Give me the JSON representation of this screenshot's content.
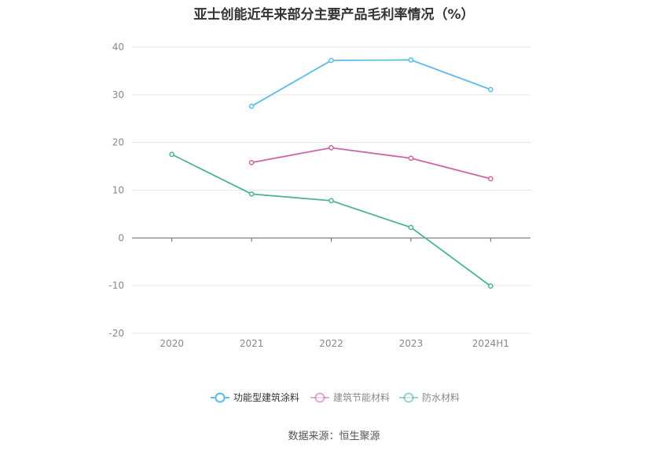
{
  "title": "亚士创能近年来部分主要产品毛利率情况（%）",
  "source": "数据来源：恒生聚源",
  "chart_data": {
    "type": "line",
    "categories": [
      "2020",
      "2021",
      "2022",
      "2023",
      "2024H1"
    ],
    "ylim": [
      -20,
      40
    ],
    "yticks": [
      40,
      30,
      20,
      10,
      0,
      -10,
      -20
    ],
    "grid": true,
    "legend_position": "bottom",
    "series": [
      {
        "name": "功能型建筑涂料",
        "color": "#5bbcea",
        "values": [
          null,
          27.6,
          37.2,
          37.3,
          31.1
        ]
      },
      {
        "name": "建筑节能材料",
        "color": "#d062a8",
        "values": [
          null,
          15.8,
          18.9,
          16.7,
          12.4
        ]
      },
      {
        "name": "防水材料",
        "color": "#4bb398",
        "values": [
          17.5,
          9.2,
          7.8,
          2.2,
          -10.1
        ]
      }
    ]
  }
}
